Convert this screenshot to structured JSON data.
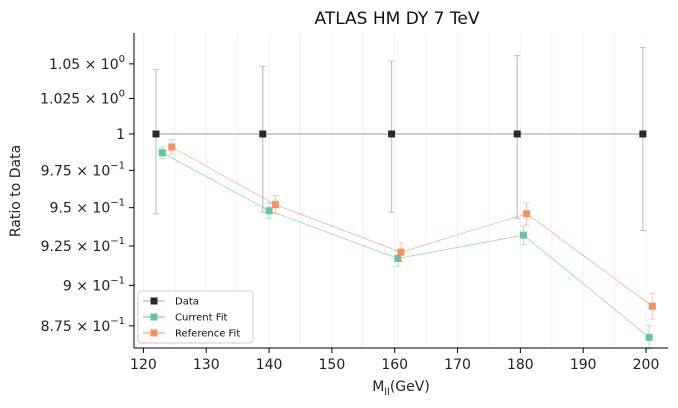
{
  "chart_data": {
    "type": "line",
    "title": "ATLAS HM DY 7 TeV",
    "xlabel": "M",
    "xlabel_sub": "ll",
    "xlabel_unit": "(GeV)",
    "ylabel": "Ratio to Data",
    "xlim": [
      118.5,
      203.5
    ],
    "ylim": [
      0.8616,
      1.0728
    ],
    "y_scale": "log",
    "grid": "vertical-minor-faint",
    "legend_position": "lower-left",
    "x_ticks": [
      120,
      130,
      140,
      150,
      160,
      170,
      180,
      190,
      200
    ],
    "y_ticks": [
      {
        "value": 0.875,
        "mant": "8.75",
        "exp": "−1"
      },
      {
        "value": 0.9,
        "mant": "9",
        "exp": "−1"
      },
      {
        "value": 0.925,
        "mant": "9.25",
        "exp": "−1"
      },
      {
        "value": 0.95,
        "mant": "9.5",
        "exp": "−1"
      },
      {
        "value": 0.975,
        "mant": "9.75",
        "exp": "−1"
      },
      {
        "value": 1.0,
        "mant": "1",
        "exp": "0",
        "plain": true
      },
      {
        "value": 1.025,
        "mant": "1.025",
        "exp": "0"
      },
      {
        "value": 1.05,
        "mant": "1.05",
        "exp": "0"
      }
    ],
    "series": [
      {
        "name": "Data",
        "color": "#2a2a2a",
        "line_color": "#aaaaaa",
        "x": [
          122.0,
          139.0,
          159.5,
          179.5,
          199.5
        ],
        "y": [
          1.0,
          1.0,
          1.0,
          1.0,
          1.0
        ],
        "err_lo": [
          0.054,
          0.053,
          0.053,
          0.057,
          0.065
        ],
        "err_hi": [
          0.046,
          0.048,
          0.052,
          0.056,
          0.062
        ]
      },
      {
        "name": "Current Fit",
        "color": "#66c2a5",
        "x": [
          123.0,
          140.0,
          160.5,
          180.5,
          200.5
        ],
        "y": [
          0.987,
          0.948,
          0.917,
          0.932,
          0.868
        ],
        "err_lo": [
          0.004,
          0.005,
          0.005,
          0.006,
          0.007
        ],
        "err_hi": [
          0.004,
          0.005,
          0.005,
          0.006,
          0.007
        ]
      },
      {
        "name": "Reference Fit",
        "color": "#fc8d62",
        "x": [
          124.5,
          141.0,
          161.0,
          181.0,
          201.0
        ],
        "y": [
          0.991,
          0.952,
          0.921,
          0.946,
          0.887
        ],
        "err_lo": [
          0.005,
          0.006,
          0.006,
          0.007,
          0.008
        ],
        "err_hi": [
          0.005,
          0.006,
          0.006,
          0.007,
          0.008
        ]
      }
    ]
  }
}
